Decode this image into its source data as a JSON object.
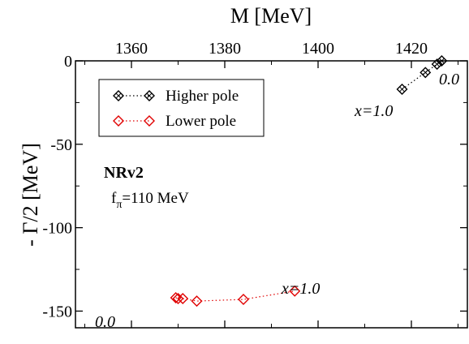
{
  "chart_data": {
    "type": "scatter",
    "xlabel": "M [MeV]",
    "ylabel": "- Γ/2 [MeV]",
    "xlim": [
      1348,
      1432
    ],
    "ylim": [
      -160,
      0
    ],
    "x_ticks": [
      1360,
      1380,
      1400,
      1420
    ],
    "y_ticks": [
      0,
      -50,
      -100,
      -150
    ],
    "x_axis_position": "top",
    "grid": false,
    "legend_position": "top-left",
    "series": [
      {
        "name": "Higher pole",
        "color": "#000000",
        "marker": "diamond",
        "line": "dotted",
        "points": [
          {
            "x": 1418.0,
            "y": -17.0
          },
          {
            "x": 1423.0,
            "y": -7.0
          },
          {
            "x": 1425.5,
            "y": -2.0
          },
          {
            "x": 1426.5,
            "y": 0.0
          }
        ]
      },
      {
        "name": "Lower pole",
        "color": "#e00000",
        "marker": "diamond",
        "line": "dotted",
        "points": [
          {
            "x": 1369.5,
            "y": -142.0
          },
          {
            "x": 1370.0,
            "y": -142.5
          },
          {
            "x": 1371.0,
            "y": -142.5
          },
          {
            "x": 1374.0,
            "y": -144.0
          },
          {
            "x": 1384.0,
            "y": -143.0
          },
          {
            "x": 1395.0,
            "y": -138.0
          }
        ]
      }
    ],
    "annotations": {
      "model": "NRv2",
      "fpi_symbol": "f",
      "fpi_subscript": "π",
      "fpi_value": "=110 MeV",
      "higher_start": "0.0",
      "higher_end": "x=1.0",
      "lower_start": "0.0",
      "lower_end": "x=1.0"
    }
  }
}
